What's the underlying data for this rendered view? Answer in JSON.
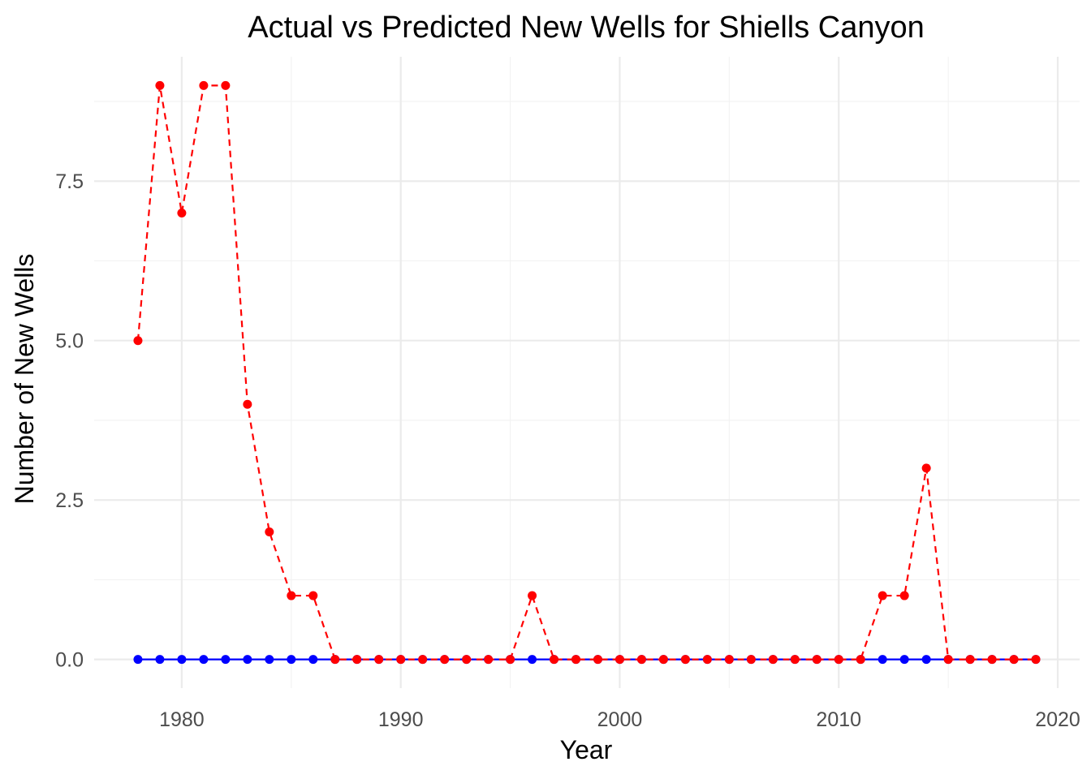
{
  "chart_data": {
    "type": "line",
    "title": "Actual vs Predicted New Wells for Shiells Canyon",
    "xlabel": "Year",
    "ylabel": "Number of New Wells",
    "xlim": [
      1976,
      2021
    ],
    "ylim": [
      -0.45,
      9.45
    ],
    "x_ticks": [
      1980,
      1990,
      2000,
      2010,
      2020
    ],
    "x_tick_labels": [
      "1980",
      "1990",
      "2000",
      "2010",
      "2020"
    ],
    "x_minor_ticks": [
      1975,
      1985,
      1995,
      2005,
      2015
    ],
    "y_ticks": [
      0,
      2.5,
      5,
      7.5
    ],
    "y_tick_labels": [
      "0.0",
      "2.5",
      "5.0",
      "7.5"
    ],
    "y_minor_ticks": [
      1.25,
      3.75,
      6.25,
      8.75
    ],
    "grid": true,
    "legend": "none",
    "x": [
      1978,
      1979,
      1980,
      1981,
      1982,
      1983,
      1984,
      1985,
      1986,
      1987,
      1988,
      1989,
      1990,
      1991,
      1992,
      1993,
      1994,
      1995,
      1996,
      1997,
      1998,
      1999,
      2000,
      2001,
      2002,
      2003,
      2004,
      2005,
      2006,
      2007,
      2008,
      2009,
      2010,
      2011,
      2012,
      2013,
      2014,
      2015,
      2016,
      2017,
      2018,
      2019
    ],
    "series": [
      {
        "color": "#0000ff",
        "line_style": "solid",
        "values": [
          0,
          0,
          0,
          0,
          0,
          0,
          0,
          0,
          0,
          0,
          0,
          0,
          0,
          0,
          0,
          0,
          0,
          0,
          0,
          0,
          0,
          0,
          0,
          0,
          0,
          0,
          0,
          0,
          0,
          0,
          0,
          0,
          0,
          0,
          0,
          0,
          0,
          0,
          0,
          0,
          0,
          0
        ]
      },
      {
        "color": "#ff0000",
        "line_style": "dashed",
        "values": [
          5,
          9,
          7,
          9,
          9,
          4,
          2,
          1,
          1,
          0,
          0,
          0,
          0,
          0,
          0,
          0,
          0,
          0,
          1,
          0,
          0,
          0,
          0,
          0,
          0,
          0,
          0,
          0,
          0,
          0,
          0,
          0,
          0,
          0,
          1,
          1,
          3,
          0,
          0,
          0,
          0,
          0
        ]
      }
    ]
  }
}
